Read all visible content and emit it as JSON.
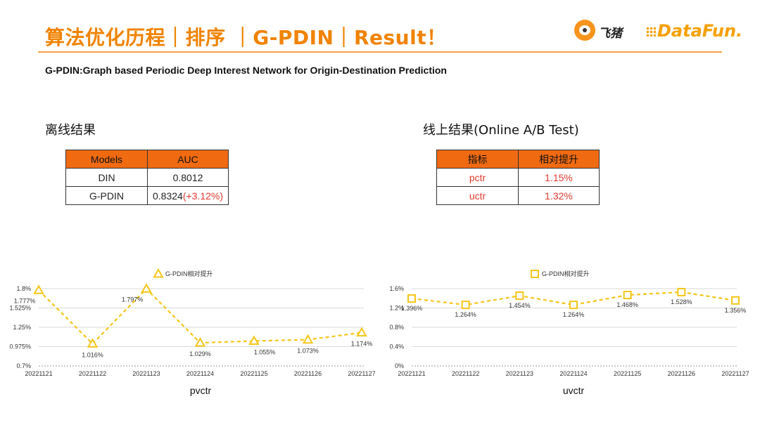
{
  "header": {
    "title": "算法优化历程｜排序 ｜G-PDIN｜Result！",
    "subtitle": "G-PDIN:Graph based Periodic Deep Interest Network for Origin-Destination Prediction",
    "logo_fliggy": "飞猪",
    "logo_datafun": "DataFun."
  },
  "offline": {
    "heading": "离线结果",
    "columns": [
      "Models",
      "AUC"
    ],
    "rows": [
      {
        "model": "DIN",
        "auc": "0.8012",
        "delta": ""
      },
      {
        "model": "G-PDIN",
        "auc": "0.8324",
        "delta": "(+3.12%)"
      }
    ]
  },
  "online": {
    "heading": "线上结果(Online A/B Test)",
    "columns": [
      "指标",
      "相对提升"
    ],
    "rows": [
      {
        "metric": "pctr",
        "lift": "1.15%"
      },
      {
        "metric": "uctr",
        "lift": "1.32%"
      }
    ]
  },
  "colors": {
    "accent": "#F08300",
    "series": "#F5C518",
    "table_header": "#F06A12",
    "red": "#E03A2F"
  },
  "chart_data": [
    {
      "type": "line",
      "title": "pvctr",
      "legend": "G-PDIN相对提升",
      "marker": "triangle",
      "x": [
        "20221121",
        "20221122",
        "20221123",
        "20221124",
        "20221125",
        "20221126",
        "20221127"
      ],
      "series": [
        {
          "name": "G-PDIN相对提升",
          "values": [
            1.777,
            1.016,
            1.797,
            1.029,
            1.055,
            1.073,
            1.174
          ]
        }
      ],
      "value_labels": [
        "1.777%",
        "1.016%",
        "1.797%",
        "1.029%",
        "1.055%",
        "1.073%",
        "1.174%"
      ],
      "yticks": [
        0.7,
        0.975,
        1.25,
        1.525,
        1.8
      ],
      "ytick_labels": [
        "0.7%",
        "0.975%",
        "1.25%",
        "1.525%",
        "1.8%"
      ],
      "ylim": [
        0.7,
        1.8
      ]
    },
    {
      "type": "line",
      "title": "uvctr",
      "legend": "G-PDIN相对提升",
      "marker": "square",
      "x": [
        "20221121",
        "20221122",
        "20221123",
        "20221124",
        "20221125",
        "20221126",
        "20221127"
      ],
      "series": [
        {
          "name": "G-PDIN相对提升",
          "values": [
            1.396,
            1.264,
            1.454,
            1.264,
            1.468,
            1.528,
            1.356
          ]
        }
      ],
      "value_labels": [
        "1.396%",
        "1.264%",
        "1.454%",
        "1.264%",
        "1.468%",
        "1.528%",
        "1.356%"
      ],
      "yticks": [
        0,
        0.4,
        0.8,
        1.2,
        1.6
      ],
      "ytick_labels": [
        "0%",
        "0.4%",
        "0.8%",
        "1.2%",
        "1.6%"
      ],
      "ylim": [
        0,
        1.6
      ]
    }
  ]
}
